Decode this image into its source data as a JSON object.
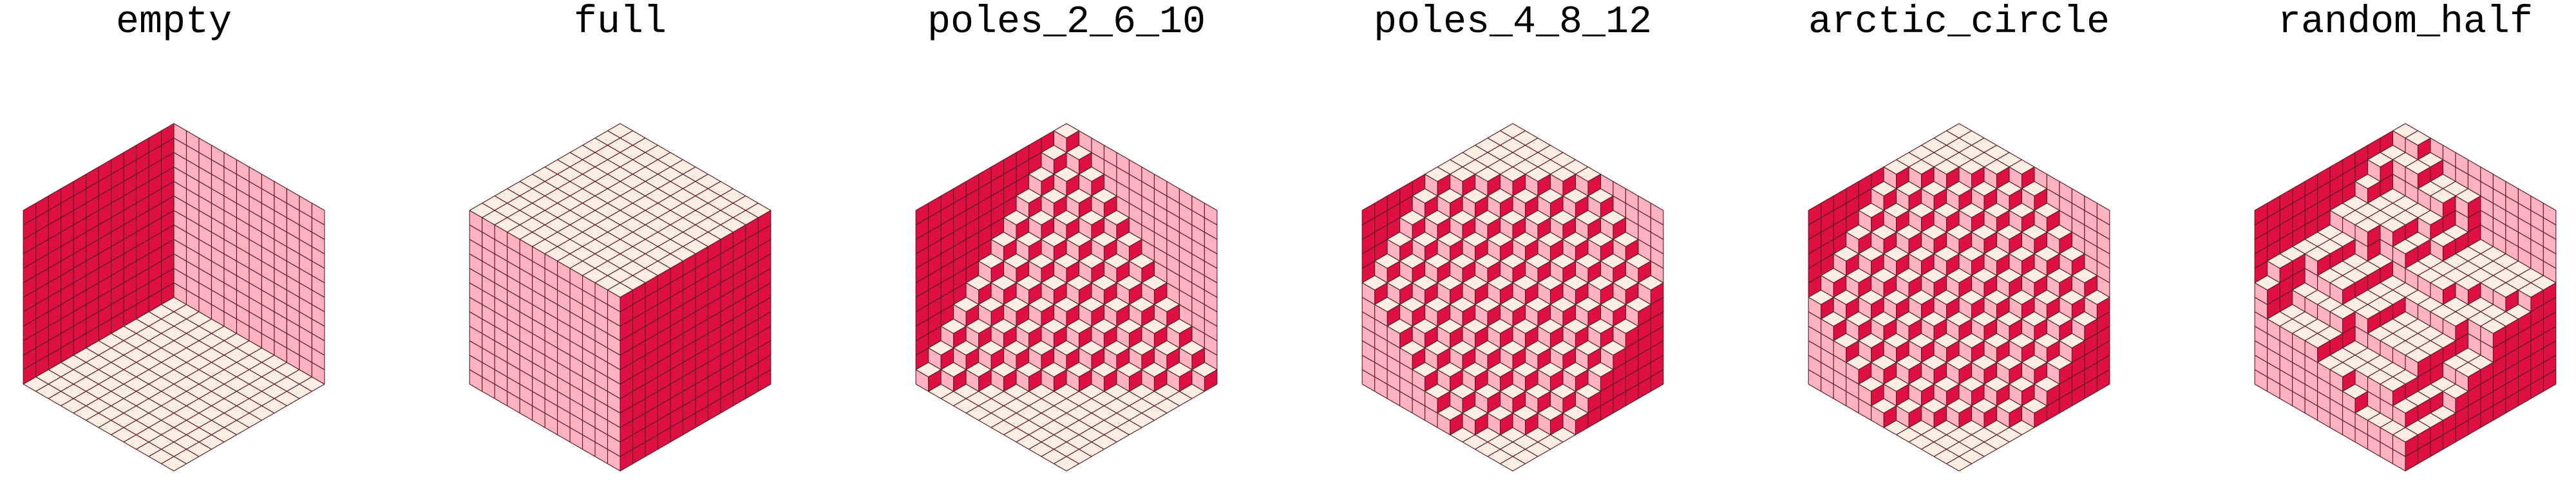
{
  "colors": {
    "top": "#fdeee2",
    "left": "#de1041",
    "right": "#ffb2bf",
    "grid": "#5a1a24",
    "background": "#ffffff"
  },
  "grid_size": 12,
  "panels": [
    {
      "title": "empty",
      "pattern": "empty"
    },
    {
      "title": "full",
      "pattern": "full"
    },
    {
      "title": "poles_2_6_10",
      "pattern": "poles_2_6_10"
    },
    {
      "title": "poles_4_8_12",
      "pattern": "poles_4_8_12"
    },
    {
      "title": "arctic_circle",
      "pattern": "arctic_circle"
    },
    {
      "title": "random_half",
      "pattern": "random_half"
    }
  ]
}
